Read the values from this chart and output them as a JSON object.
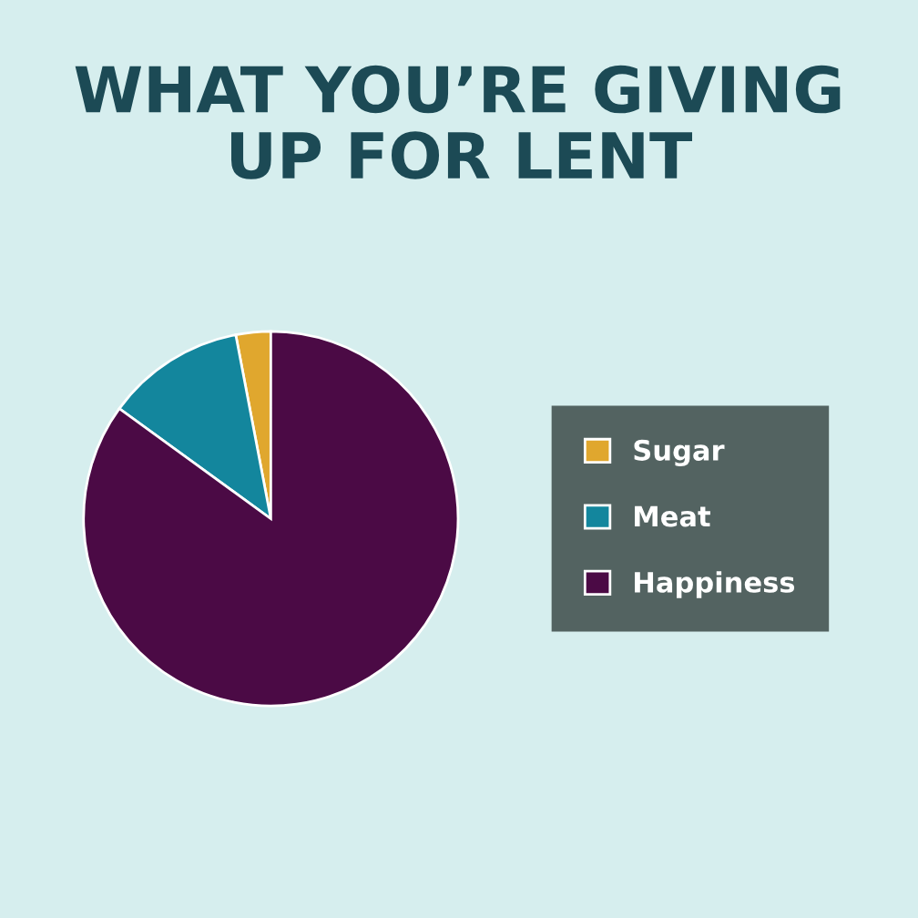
{
  "chart_data": {
    "type": "pie",
    "title": "WHAT YOU’RE GIVING\nUP FOR LENT",
    "categories": [
      "Sugar",
      "Meat",
      "Happiness"
    ],
    "values": [
      3,
      12,
      85
    ],
    "colors": [
      "#e0a72e",
      "#13869d",
      "#4b0a45"
    ],
    "legend": "right"
  }
}
